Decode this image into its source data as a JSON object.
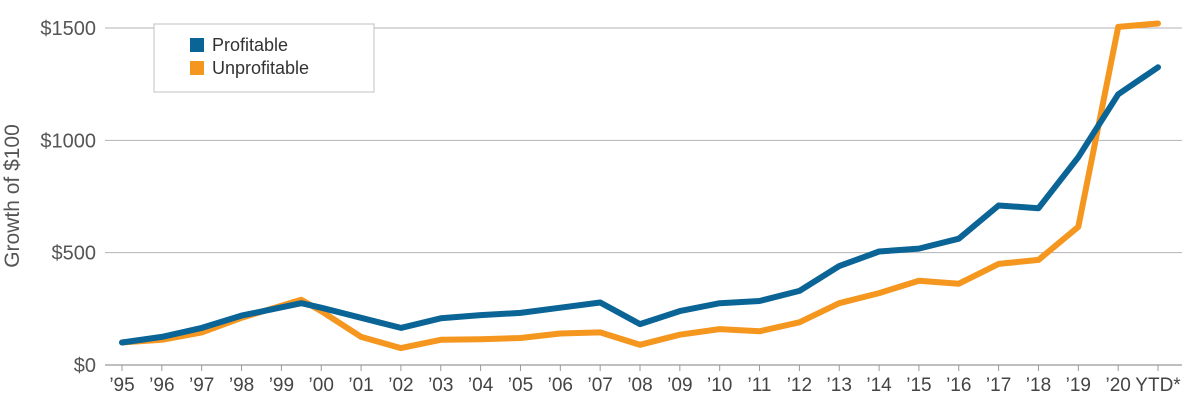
{
  "chart_data": {
    "type": "line",
    "title": "",
    "xlabel": "",
    "ylabel": "Growth of $100",
    "ylim": [
      0,
      1500
    ],
    "yticks": [
      {
        "value": 0,
        "label": "$0"
      },
      {
        "value": 500,
        "label": "$500"
      },
      {
        "value": 1000,
        "label": "$1000"
      },
      {
        "value": 1500,
        "label": "$1500"
      }
    ],
    "categories": [
      "’95",
      "’96",
      "’97",
      "’98",
      "’99",
      "’00",
      "’01",
      "’02",
      "’03",
      "’04",
      "’05",
      "’06",
      "’07",
      "’08",
      "’09",
      "’10",
      "’11",
      "’12",
      "’13",
      "’14",
      "’15",
      "’16",
      "’17",
      "’18",
      "’19",
      "’20",
      "YTD*"
    ],
    "grid": true,
    "legend_position": "top-left",
    "series": [
      {
        "name": "Profitable",
        "color": "#0a6496",
        "x": [
          0,
          1,
          2,
          3,
          4.5,
          5,
          6,
          7,
          8,
          9,
          10,
          11,
          12,
          13,
          14,
          15,
          16,
          17,
          18,
          19,
          20,
          21,
          22,
          23,
          24,
          25,
          26
        ],
        "values": [
          100,
          125,
          165,
          220,
          275,
          255,
          210,
          165,
          208,
          222,
          232,
          255,
          278,
          182,
          240,
          275,
          285,
          330,
          440,
          505,
          518,
          562,
          710,
          698,
          925,
          1205,
          1325
        ]
      },
      {
        "name": "Unprofitable",
        "color": "#f5961e",
        "x": [
          0,
          1,
          2,
          3,
          4.5,
          5,
          6,
          7,
          8,
          9,
          10,
          11,
          12,
          13,
          14,
          15,
          16,
          17,
          18,
          19,
          20,
          21,
          22,
          23,
          24,
          25,
          26
        ],
        "values": [
          100,
          112,
          145,
          210,
          290,
          240,
          125,
          75,
          112,
          115,
          120,
          140,
          145,
          90,
          135,
          160,
          150,
          190,
          275,
          320,
          375,
          362,
          450,
          468,
          615,
          1505,
          1520
        ]
      }
    ]
  }
}
